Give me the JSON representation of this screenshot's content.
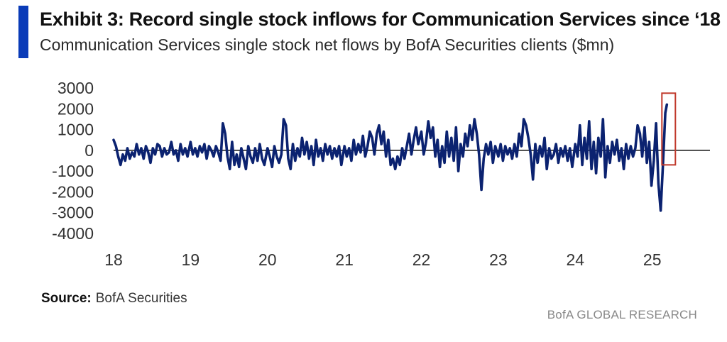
{
  "header": {
    "title": "Exhibit 3: Record single stock inflows for Communication Services since ‘18",
    "subtitle": "Communication Services single stock net flows by BofA Securities clients ($mn)"
  },
  "footer": {
    "source_label": "Source:",
    "source_value": "BofA Securities",
    "brand": "BofA GLOBAL RESEARCH"
  },
  "colors": {
    "accent": "#0a3bb8",
    "series": "#0b2270",
    "highlight_box": "#c0392b"
  },
  "chart_data": {
    "type": "line",
    "title": "Exhibit 3: Record single stock inflows for Communication Services since ‘18",
    "subtitle": "Communication Services single stock net flows by BofA Securities clients ($mn)",
    "xlabel": "",
    "ylabel": "",
    "xlim": [
      18,
      25.75
    ],
    "ylim": [
      -4000,
      3000
    ],
    "x_ticks": [
      "18",
      "19",
      "20",
      "21",
      "22",
      "23",
      "24",
      "25"
    ],
    "y_ticks": [
      "3000",
      "2000",
      "1000",
      "0",
      "-1000",
      "-2000",
      "-3000",
      "-4000"
    ],
    "grid": false,
    "legend": "none",
    "annotation": "Highlight box around latest record inflow",
    "series": [
      {
        "name": "Communication Services single stock net flows",
        "points": [
          [
            18.0,
            500
          ],
          [
            18.03,
            200
          ],
          [
            18.06,
            -300
          ],
          [
            18.09,
            -700
          ],
          [
            18.12,
            -200
          ],
          [
            18.15,
            -500
          ],
          [
            18.18,
            100
          ],
          [
            18.21,
            -400
          ],
          [
            18.24,
            -100
          ],
          [
            18.27,
            -300
          ],
          [
            18.3,
            300
          ],
          [
            18.33,
            -200
          ],
          [
            18.36,
            100
          ],
          [
            18.39,
            -400
          ],
          [
            18.42,
            200
          ],
          [
            18.45,
            -100
          ],
          [
            18.48,
            -600
          ],
          [
            18.51,
            100
          ],
          [
            18.54,
            -200
          ],
          [
            18.57,
            300
          ],
          [
            18.6,
            200
          ],
          [
            18.63,
            -300
          ],
          [
            18.66,
            100
          ],
          [
            18.69,
            -200
          ],
          [
            18.72,
            -100
          ],
          [
            18.75,
            400
          ],
          [
            18.78,
            -200
          ],
          [
            18.81,
            0
          ],
          [
            18.84,
            -500
          ],
          [
            18.87,
            300
          ],
          [
            18.9,
            -200
          ],
          [
            18.93,
            100
          ],
          [
            18.96,
            -300
          ],
          [
            19.0,
            400
          ],
          [
            19.03,
            -200
          ],
          [
            19.06,
            100
          ],
          [
            19.09,
            -300
          ],
          [
            19.12,
            200
          ],
          [
            19.15,
            -100
          ],
          [
            19.18,
            300
          ],
          [
            19.21,
            -400
          ],
          [
            19.24,
            200
          ],
          [
            19.27,
            0
          ],
          [
            19.3,
            -300
          ],
          [
            19.33,
            200
          ],
          [
            19.36,
            -100
          ],
          [
            19.39,
            -500
          ],
          [
            19.42,
            1300
          ],
          [
            19.45,
            800
          ],
          [
            19.48,
            -300
          ],
          [
            19.51,
            -900
          ],
          [
            19.54,
            400
          ],
          [
            19.57,
            -700
          ],
          [
            19.6,
            -200
          ],
          [
            19.63,
            -800
          ],
          [
            19.66,
            100
          ],
          [
            19.69,
            -400
          ],
          [
            19.72,
            -900
          ],
          [
            19.75,
            200
          ],
          [
            19.78,
            -300
          ],
          [
            19.81,
            -600
          ],
          [
            19.84,
            100
          ],
          [
            19.87,
            -500
          ],
          [
            19.9,
            300
          ],
          [
            19.93,
            -400
          ],
          [
            19.96,
            -700
          ],
          [
            20.0,
            100
          ],
          [
            20.03,
            -300
          ],
          [
            20.06,
            -800
          ],
          [
            20.09,
            200
          ],
          [
            20.12,
            -300
          ],
          [
            20.15,
            -600
          ],
          [
            20.18,
            -200
          ],
          [
            20.21,
            1500
          ],
          [
            20.24,
            1200
          ],
          [
            20.27,
            -400
          ],
          [
            20.3,
            -900
          ],
          [
            20.33,
            300
          ],
          [
            20.36,
            -500
          ],
          [
            20.39,
            100
          ],
          [
            20.42,
            -300
          ],
          [
            20.45,
            600
          ],
          [
            20.48,
            -200
          ],
          [
            20.51,
            400
          ],
          [
            20.54,
            -400
          ],
          [
            20.57,
            200
          ],
          [
            20.6,
            -700
          ],
          [
            20.63,
            500
          ],
          [
            20.66,
            -300
          ],
          [
            20.69,
            100
          ],
          [
            20.72,
            -500
          ],
          [
            20.75,
            300
          ],
          [
            20.78,
            -200
          ],
          [
            20.81,
            200
          ],
          [
            20.84,
            -400
          ],
          [
            20.87,
            100
          ],
          [
            20.9,
            -300
          ],
          [
            20.93,
            200
          ],
          [
            20.96,
            -700
          ],
          [
            21.0,
            200
          ],
          [
            21.03,
            -300
          ],
          [
            21.06,
            100
          ],
          [
            21.09,
            -500
          ],
          [
            21.12,
            500
          ],
          [
            21.15,
            -200
          ],
          [
            21.18,
            300
          ],
          [
            21.21,
            -100
          ],
          [
            21.24,
            700
          ],
          [
            21.27,
            -300
          ],
          [
            21.3,
            200
          ],
          [
            21.33,
            900
          ],
          [
            21.36,
            600
          ],
          [
            21.39,
            -200
          ],
          [
            21.42,
            800
          ],
          [
            21.45,
            1200
          ],
          [
            21.48,
            300
          ],
          [
            21.51,
            900
          ],
          [
            21.54,
            -300
          ],
          [
            21.57,
            500
          ],
          [
            21.6,
            -700
          ],
          [
            21.63,
            -400
          ],
          [
            21.66,
            -900
          ],
          [
            21.69,
            -300
          ],
          [
            21.72,
            -700
          ],
          [
            21.75,
            100
          ],
          [
            21.78,
            -400
          ],
          [
            21.81,
            200
          ],
          [
            21.84,
            800
          ],
          [
            21.87,
            -200
          ],
          [
            21.9,
            500
          ],
          [
            21.93,
            1100
          ],
          [
            21.96,
            300
          ],
          [
            22.0,
            900
          ],
          [
            22.03,
            -200
          ],
          [
            22.06,
            400
          ],
          [
            22.09,
            1400
          ],
          [
            22.12,
            600
          ],
          [
            22.15,
            1100
          ],
          [
            22.18,
            -300
          ],
          [
            22.21,
            500
          ],
          [
            22.24,
            -800
          ],
          [
            22.27,
            200
          ],
          [
            22.3,
            -600
          ],
          [
            22.33,
            900
          ],
          [
            22.36,
            -300
          ],
          [
            22.39,
            600
          ],
          [
            22.42,
            -500
          ],
          [
            22.45,
            1100
          ],
          [
            22.48,
            -1000
          ],
          [
            22.51,
            300
          ],
          [
            22.54,
            -300
          ],
          [
            22.57,
            800
          ],
          [
            22.6,
            200
          ],
          [
            22.63,
            1200
          ],
          [
            22.66,
            500
          ],
          [
            22.69,
            1500
          ],
          [
            22.72,
            800
          ],
          [
            22.75,
            -200
          ],
          [
            22.78,
            -1900
          ],
          [
            22.81,
            -400
          ],
          [
            22.84,
            300
          ],
          [
            22.87,
            -200
          ],
          [
            22.9,
            400
          ],
          [
            22.93,
            -600
          ],
          [
            22.96,
            200
          ],
          [
            23.0,
            -300
          ],
          [
            23.03,
            300
          ],
          [
            23.06,
            -500
          ],
          [
            23.09,
            200
          ],
          [
            23.12,
            -200
          ],
          [
            23.15,
            100
          ],
          [
            23.18,
            -400
          ],
          [
            23.21,
            300
          ],
          [
            23.24,
            -300
          ],
          [
            23.27,
            800
          ],
          [
            23.3,
            200
          ],
          [
            23.33,
            1500
          ],
          [
            23.36,
            1200
          ],
          [
            23.39,
            600
          ],
          [
            23.42,
            -200
          ],
          [
            23.45,
            -1400
          ],
          [
            23.48,
            300
          ],
          [
            23.51,
            -600
          ],
          [
            23.54,
            200
          ],
          [
            23.57,
            -300
          ],
          [
            23.6,
            600
          ],
          [
            23.63,
            -900
          ],
          [
            23.66,
            100
          ],
          [
            23.69,
            -400
          ],
          [
            23.72,
            -200
          ],
          [
            23.75,
            300
          ],
          [
            23.78,
            -600
          ],
          [
            23.81,
            100
          ],
          [
            23.84,
            -300
          ],
          [
            23.87,
            200
          ],
          [
            23.9,
            -500
          ],
          [
            23.93,
            100
          ],
          [
            23.96,
            -800
          ],
          [
            24.0,
            300
          ],
          [
            24.03,
            -300
          ],
          [
            24.06,
            1200
          ],
          [
            24.09,
            -700
          ],
          [
            24.12,
            600
          ],
          [
            24.15,
            -400
          ],
          [
            24.18,
            1400
          ],
          [
            24.21,
            -900
          ],
          [
            24.24,
            400
          ],
          [
            24.27,
            -1100
          ],
          [
            24.3,
            600
          ],
          [
            24.33,
            -300
          ],
          [
            24.36,
            1500
          ],
          [
            24.39,
            -1300
          ],
          [
            24.42,
            200
          ],
          [
            24.45,
            -600
          ],
          [
            24.48,
            400
          ],
          [
            24.51,
            -200
          ],
          [
            24.54,
            500
          ],
          [
            24.57,
            -500
          ],
          [
            24.6,
            100
          ],
          [
            24.63,
            -900
          ],
          [
            24.66,
            300
          ],
          [
            24.69,
            -400
          ],
          [
            24.72,
            200
          ],
          [
            24.75,
            -300
          ],
          [
            24.78,
            100
          ],
          [
            24.81,
            1200
          ],
          [
            24.84,
            800
          ],
          [
            24.87,
            -300
          ],
          [
            24.9,
            1100
          ],
          [
            24.93,
            -600
          ],
          [
            24.96,
            400
          ],
          [
            24.99,
            -1700
          ],
          [
            25.02,
            -500
          ],
          [
            25.05,
            1300
          ],
          [
            25.08,
            -1600
          ],
          [
            25.11,
            -2900
          ],
          [
            25.14,
            -600
          ],
          [
            25.17,
            1800
          ],
          [
            25.19,
            2200
          ]
        ]
      }
    ]
  }
}
